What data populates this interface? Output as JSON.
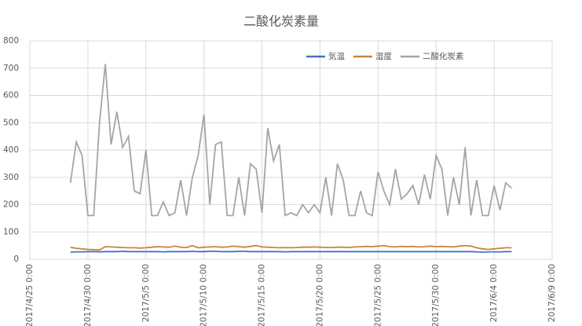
{
  "chart_data": {
    "type": "line",
    "title": "二酸化炭素量",
    "x": [
      "2017/4/28 12:00",
      "2017/4/29 0:00",
      "2017/4/29 12:00",
      "2017/4/30 0:00",
      "2017/4/30 12:00",
      "2017/5/1 0:00",
      "2017/5/1 12:00",
      "2017/5/2 0:00",
      "2017/5/2 12:00",
      "2017/5/3 0:00",
      "2017/5/3 12:00",
      "2017/5/4 0:00",
      "2017/5/4 12:00",
      "2017/5/5 0:00",
      "2017/5/5 12:00",
      "2017/5/6 0:00",
      "2017/5/6 12:00",
      "2017/5/7 0:00",
      "2017/5/7 12:00",
      "2017/5/8 0:00",
      "2017/5/8 12:00",
      "2017/5/9 0:00",
      "2017/5/9 12:00",
      "2017/5/10 0:00",
      "2017/5/10 12:00",
      "2017/5/11 0:00",
      "2017/5/11 12:00",
      "2017/5/12 0:00",
      "2017/5/12 12:00",
      "2017/5/13 0:00",
      "2017/5/13 12:00",
      "2017/5/14 0:00",
      "2017/5/14 12:00",
      "2017/5/15 0:00",
      "2017/5/15 12:00",
      "2017/5/16 0:00",
      "2017/5/16 12:00",
      "2017/5/17 0:00",
      "2017/5/17 12:00",
      "2017/5/18 0:00",
      "2017/5/18 12:00",
      "2017/5/19 0:00",
      "2017/5/19 12:00",
      "2017/5/20 0:00",
      "2017/5/20 12:00",
      "2017/5/21 0:00",
      "2017/5/21 12:00",
      "2017/5/22 0:00",
      "2017/5/22 12:00",
      "2017/5/23 0:00",
      "2017/5/23 12:00",
      "2017/5/24 0:00",
      "2017/5/24 12:00",
      "2017/5/25 0:00",
      "2017/5/25 12:00",
      "2017/5/26 0:00",
      "2017/5/26 12:00",
      "2017/5/27 0:00",
      "2017/5/27 12:00",
      "2017/5/28 0:00",
      "2017/5/28 12:00",
      "2017/5/29 0:00",
      "2017/5/29 12:00",
      "2017/5/30 0:00",
      "2017/5/30 12:00",
      "2017/5/31 0:00",
      "2017/5/31 12:00",
      "2017/6/1 0:00",
      "2017/6/1 12:00",
      "2017/6/2 0:00",
      "2017/6/2 12:00",
      "2017/6/3 0:00",
      "2017/6/3 12:00",
      "2017/6/4 0:00",
      "2017/6/4 12:00",
      "2017/6/5 0:00",
      "2017/6/5 12:00"
    ],
    "series": [
      {
        "name": "気温",
        "color": "#4472c4",
        "values": [
          26,
          27,
          27,
          28,
          28,
          27,
          28,
          28,
          28,
          29,
          28,
          28,
          28,
          28,
          28,
          28,
          27,
          28,
          28,
          28,
          28,
          29,
          28,
          28,
          29,
          29,
          28,
          28,
          28,
          29,
          29,
          28,
          28,
          28,
          28,
          28,
          28,
          27,
          28,
          28,
          28,
          28,
          28,
          28,
          28,
          28,
          28,
          28,
          28,
          28,
          28,
          28,
          28,
          28,
          28,
          28,
          28,
          28,
          28,
          28,
          28,
          28,
          28,
          28,
          28,
          28,
          28,
          28,
          28,
          28,
          27,
          26,
          27,
          27,
          27,
          28,
          28
        ]
      },
      {
        "name": "湿度",
        "color": "#c9843c",
        "values": [
          44,
          40,
          38,
          36,
          35,
          34,
          46,
          45,
          44,
          43,
          42,
          42,
          41,
          42,
          44,
          46,
          45,
          44,
          48,
          44,
          43,
          50,
          42,
          44,
          45,
          46,
          44,
          45,
          48,
          46,
          44,
          47,
          50,
          45,
          44,
          43,
          42,
          43,
          42,
          43,
          44,
          44,
          45,
          44,
          43,
          43,
          44,
          44,
          43,
          45,
          46,
          47,
          46,
          48,
          50,
          46,
          45,
          47,
          46,
          47,
          45,
          46,
          48,
          46,
          47,
          46,
          45,
          48,
          50,
          48,
          42,
          38,
          36,
          38,
          40,
          42,
          42
        ]
      },
      {
        "name": "二酸化炭素",
        "color": "#a5a5a5",
        "values": [
          280,
          430,
          380,
          160,
          160,
          500,
          715,
          420,
          540,
          410,
          450,
          250,
          240,
          400,
          160,
          160,
          210,
          160,
          170,
          290,
          160,
          300,
          380,
          530,
          200,
          420,
          430,
          160,
          160,
          300,
          160,
          350,
          330,
          170,
          480,
          360,
          420,
          160,
          170,
          160,
          200,
          170,
          200,
          170,
          300,
          160,
          350,
          290,
          160,
          160,
          250,
          170,
          160,
          320,
          250,
          200,
          330,
          220,
          240,
          270,
          200,
          310,
          220,
          380,
          330,
          160,
          300,
          200,
          410,
          160,
          290,
          160,
          160,
          270,
          180,
          280,
          260
        ]
      }
    ],
    "xlim": [
      "2017/4/25 0:00",
      "2017/6/9 0:00"
    ],
    "xticks": [
      "2017/4/25 0:00",
      "2017/4/30 0:00",
      "2017/5/5 0:00",
      "2017/5/10 0:00",
      "2017/5/15 0:00",
      "2017/5/20 0:00",
      "2017/5/25 0:00",
      "2017/5/30 0:00",
      "2017/6/4 0:00",
      "2017/6/9 0:00"
    ],
    "ylim": [
      0,
      800
    ],
    "yticks": [
      0,
      100,
      200,
      300,
      400,
      500,
      600,
      700,
      800
    ],
    "grid": true,
    "legend": "top-right"
  }
}
